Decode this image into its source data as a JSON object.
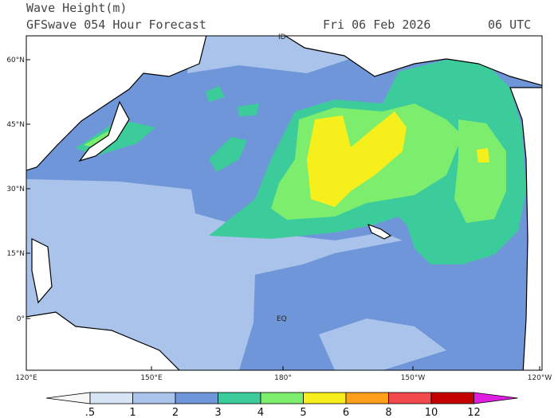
{
  "header": {
    "title": "Wave Height(m)",
    "subtitle": "GFSwave 054 Hour Forecast",
    "date": "Fri 06 Feb 2026",
    "time": "06 UTC"
  },
  "map": {
    "lat_labels": [
      "60°N",
      "45°N",
      "30°N",
      "15°N",
      "0°"
    ],
    "lon_labels": [
      "120°E",
      "150°E",
      "180°",
      "150°W",
      "120°W"
    ],
    "annotations": [
      "EQ",
      "ID"
    ]
  },
  "colorbar": {
    "labels": [
      ".5",
      "1",
      "2",
      "3",
      "4",
      "5",
      "6",
      "8",
      "10",
      "12"
    ],
    "colors": [
      "#f6f6f6",
      "#d6e4f5",
      "#a9c3ea",
      "#6f96d8",
      "#3ccb9a",
      "#7ded6e",
      "#f6ef1c",
      "#ffa01a",
      "#f24a4c",
      "#c40000",
      "#e01ee0"
    ]
  }
}
